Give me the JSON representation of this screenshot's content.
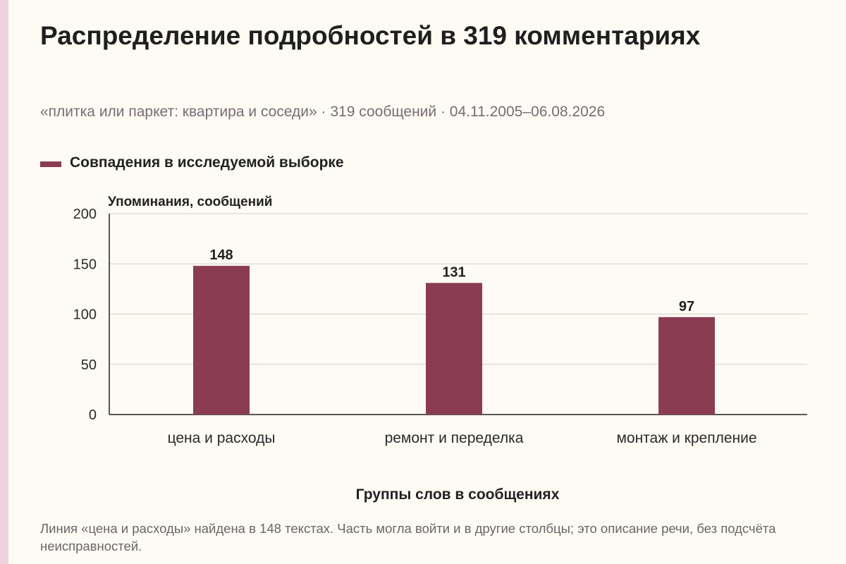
{
  "title": "Распределение подробностей в 319 комментариях",
  "subtitle": "«плитка или паркет: квартира и соседи» · 319 сообщений · 04.11.2005–06.08.2026",
  "footnote": "Линия «цена и расходы» найдена в 148 текстах. Часть могла войти и в другие столбцы; это описание речи, без подсчёта неисправностей.",
  "colors": {
    "bar": "#8b3c52",
    "stripe": "#ecd3da",
    "background": "#fdfbf4"
  },
  "chart_data": {
    "type": "bar",
    "categories": [
      "цена и расходы",
      "ремонт и переделка",
      "монтаж и крепление"
    ],
    "series": [
      {
        "name": "Совпадения в исследуемой выборке",
        "values": [
          148,
          131,
          97
        ]
      }
    ],
    "ylabel": "Упоминания, сообщений",
    "xlabel": "Группы слов в сообщениях",
    "ylim": [
      0,
      200
    ],
    "yticks": [
      0,
      50,
      100,
      150,
      200
    ],
    "grid": true,
    "legend": "top-left",
    "data_labels": true
  }
}
